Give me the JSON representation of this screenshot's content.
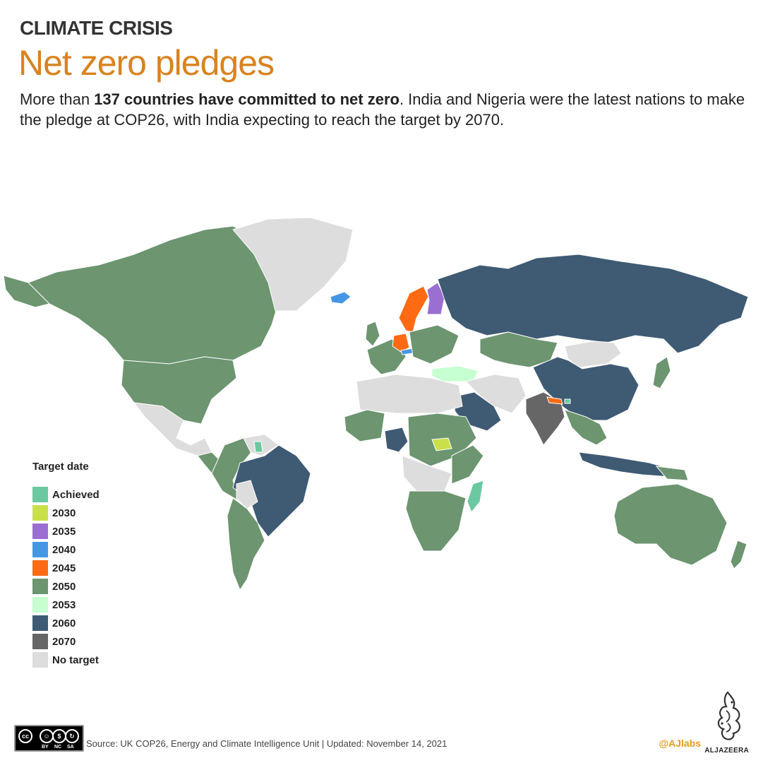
{
  "header": {
    "kicker": "CLIMATE CRISIS",
    "title": "Net zero pledges",
    "subtitle_pre": "More than ",
    "subtitle_bold": "137 countries have committed to net zero",
    "subtitle_post": ". India and Nigeria were the latest nations to make the pledge at COP26, with India expecting to reach the target by 2070."
  },
  "legend": {
    "title": "Target date",
    "items": [
      {
        "label": "Achieved",
        "color": "#6cc8a0"
      },
      {
        "label": "2030",
        "color": "#c9e04a"
      },
      {
        "label": "2035",
        "color": "#9b6fd1"
      },
      {
        "label": "2040",
        "color": "#4597e6"
      },
      {
        "label": "2045",
        "color": "#ff6a13"
      },
      {
        "label": "2050",
        "color": "#6c9570"
      },
      {
        "label": "2053",
        "color": "#c6ffd0"
      },
      {
        "label": "2060",
        "color": "#3f5a73"
      },
      {
        "label": "2070",
        "color": "#666666"
      },
      {
        "label": "No target",
        "color": "#dddddd"
      }
    ]
  },
  "map": {
    "regions": [
      {
        "name": "Canada",
        "target": "2050"
      },
      {
        "name": "United States",
        "target": "2050"
      },
      {
        "name": "Greenland",
        "target": "No target"
      },
      {
        "name": "Mexico",
        "target": "No target"
      },
      {
        "name": "Brazil",
        "target": "2060"
      },
      {
        "name": "Argentina",
        "target": "2050"
      },
      {
        "name": "Bolivia",
        "target": "No target"
      },
      {
        "name": "Suriname",
        "target": "Achieved"
      },
      {
        "name": "Iceland",
        "target": "2040"
      },
      {
        "name": "Sweden",
        "target": "2045"
      },
      {
        "name": "Finland",
        "target": "2035"
      },
      {
        "name": "Germany",
        "target": "2045"
      },
      {
        "name": "Austria",
        "target": "2040"
      },
      {
        "name": "Turkey",
        "target": "2053"
      },
      {
        "name": "Russia",
        "target": "2060"
      },
      {
        "name": "China",
        "target": "2060"
      },
      {
        "name": "Mongolia",
        "target": "No target"
      },
      {
        "name": "Kazakhstan",
        "target": "2050"
      },
      {
        "name": "Saudi Arabia",
        "target": "2060"
      },
      {
        "name": "India",
        "target": "2070"
      },
      {
        "name": "Nepal",
        "target": "2045"
      },
      {
        "name": "Bhutan",
        "target": "Achieved"
      },
      {
        "name": "Nigeria",
        "target": "2060"
      },
      {
        "name": "South Sudan",
        "target": "2030"
      },
      {
        "name": "Madagascar",
        "target": "Achieved"
      },
      {
        "name": "Indonesia",
        "target": "2060"
      },
      {
        "name": "Australia",
        "target": "2050"
      },
      {
        "name": "New Zealand",
        "target": "2050"
      },
      {
        "name": "Japan",
        "target": "2050"
      }
    ]
  },
  "footer": {
    "cc_labels": [
      "cc",
      "BY",
      "NC",
      "SA"
    ],
    "source": "Source: UK COP26, Energy and Climate Intelligence Unit  |  Updated: November 14, 2021",
    "handle": "@AJlabs",
    "brand": "ALJAZEERA"
  }
}
